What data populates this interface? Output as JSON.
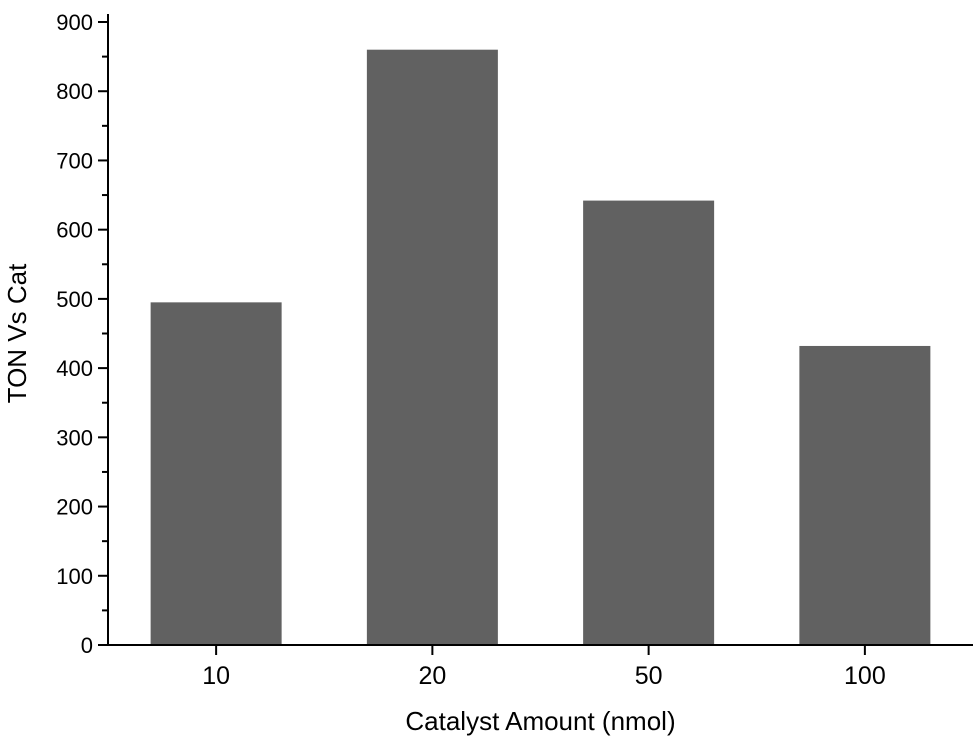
{
  "chart_data": {
    "type": "bar",
    "title": "",
    "xlabel": "Catalyst Amount (nmol)",
    "ylabel": "TON Vs Cat",
    "categories": [
      "10",
      "20",
      "50",
      "100"
    ],
    "values": [
      495,
      860,
      642,
      432
    ],
    "ylim": [
      0,
      900
    ],
    "y_major_ticks": [
      0,
      100,
      200,
      300,
      400,
      500,
      600,
      700,
      800,
      900
    ],
    "y_minor_step": 50,
    "grid": false,
    "legend": "none",
    "bar_color": "#616161"
  }
}
